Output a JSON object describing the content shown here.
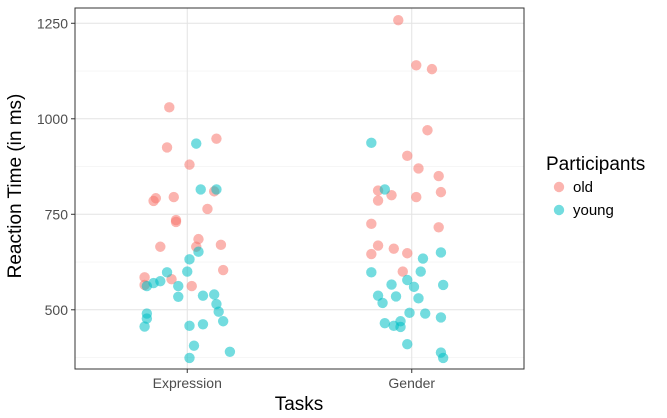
{
  "chart_data": {
    "type": "scatter",
    "title": "",
    "xlabel": "Tasks",
    "ylabel": "Reaction Time (in ms)",
    "categories": [
      "Expression",
      "Gender"
    ],
    "ylim": [
      345,
      1290
    ],
    "yticks": [
      500,
      750,
      1000,
      1250
    ],
    "grid": true,
    "legend": {
      "title": "Participants",
      "position": "right"
    },
    "series": [
      {
        "name": "old",
        "color": "#F8766D",
        "points": [
          {
            "category": "Expression",
            "jitter": -0.08,
            "y": 1030
          },
          {
            "category": "Expression",
            "jitter": 0.13,
            "y": 948
          },
          {
            "category": "Expression",
            "jitter": -0.09,
            "y": 925
          },
          {
            "category": "Expression",
            "jitter": 0.01,
            "y": 880
          },
          {
            "category": "Expression",
            "jitter": 0.12,
            "y": 810
          },
          {
            "category": "Expression",
            "jitter": -0.14,
            "y": 792
          },
          {
            "category": "Expression",
            "jitter": -0.06,
            "y": 795
          },
          {
            "category": "Expression",
            "jitter": -0.15,
            "y": 785
          },
          {
            "category": "Expression",
            "jitter": 0.09,
            "y": 764
          },
          {
            "category": "Expression",
            "jitter": -0.05,
            "y": 735
          },
          {
            "category": "Expression",
            "jitter": -0.05,
            "y": 730
          },
          {
            "category": "Expression",
            "jitter": 0.05,
            "y": 685
          },
          {
            "category": "Expression",
            "jitter": -0.12,
            "y": 665
          },
          {
            "category": "Expression",
            "jitter": 0.04,
            "y": 665
          },
          {
            "category": "Expression",
            "jitter": 0.15,
            "y": 670
          },
          {
            "category": "Expression",
            "jitter": 0.16,
            "y": 604
          },
          {
            "category": "Expression",
            "jitter": -0.19,
            "y": 585
          },
          {
            "category": "Expression",
            "jitter": -0.07,
            "y": 580
          },
          {
            "category": "Expression",
            "jitter": -0.19,
            "y": 565
          },
          {
            "category": "Expression",
            "jitter": 0.02,
            "y": 562
          },
          {
            "category": "Gender",
            "jitter": -0.06,
            "y": 1258
          },
          {
            "category": "Gender",
            "jitter": 0.02,
            "y": 1140
          },
          {
            "category": "Gender",
            "jitter": 0.09,
            "y": 1130
          },
          {
            "category": "Gender",
            "jitter": 0.07,
            "y": 970
          },
          {
            "category": "Gender",
            "jitter": -0.02,
            "y": 903
          },
          {
            "category": "Gender",
            "jitter": 0.03,
            "y": 870
          },
          {
            "category": "Gender",
            "jitter": 0.12,
            "y": 850
          },
          {
            "category": "Gender",
            "jitter": -0.15,
            "y": 812
          },
          {
            "category": "Gender",
            "jitter": 0.13,
            "y": 808
          },
          {
            "category": "Gender",
            "jitter": -0.09,
            "y": 800
          },
          {
            "category": "Gender",
            "jitter": 0.02,
            "y": 795
          },
          {
            "category": "Gender",
            "jitter": -0.15,
            "y": 786
          },
          {
            "category": "Gender",
            "jitter": -0.18,
            "y": 725
          },
          {
            "category": "Gender",
            "jitter": 0.12,
            "y": 716
          },
          {
            "category": "Gender",
            "jitter": -0.15,
            "y": 668
          },
          {
            "category": "Gender",
            "jitter": -0.08,
            "y": 660
          },
          {
            "category": "Gender",
            "jitter": -0.02,
            "y": 648
          },
          {
            "category": "Gender",
            "jitter": -0.18,
            "y": 646
          },
          {
            "category": "Gender",
            "jitter": -0.04,
            "y": 600
          }
        ]
      },
      {
        "name": "young",
        "color": "#00BFC4",
        "points": [
          {
            "category": "Expression",
            "jitter": 0.04,
            "y": 935
          },
          {
            "category": "Expression",
            "jitter": 0.06,
            "y": 815
          },
          {
            "category": "Expression",
            "jitter": 0.13,
            "y": 815
          },
          {
            "category": "Expression",
            "jitter": 0.05,
            "y": 652
          },
          {
            "category": "Expression",
            "jitter": 0.01,
            "y": 632
          },
          {
            "category": "Expression",
            "jitter": -0.09,
            "y": 598
          },
          {
            "category": "Expression",
            "jitter": 0.0,
            "y": 600
          },
          {
            "category": "Expression",
            "jitter": -0.12,
            "y": 575
          },
          {
            "category": "Expression",
            "jitter": -0.15,
            "y": 570
          },
          {
            "category": "Expression",
            "jitter": -0.18,
            "y": 562
          },
          {
            "category": "Expression",
            "jitter": -0.04,
            "y": 562
          },
          {
            "category": "Expression",
            "jitter": 0.12,
            "y": 540
          },
          {
            "category": "Expression",
            "jitter": 0.07,
            "y": 537
          },
          {
            "category": "Expression",
            "jitter": -0.04,
            "y": 534
          },
          {
            "category": "Expression",
            "jitter": 0.13,
            "y": 515
          },
          {
            "category": "Expression",
            "jitter": 0.14,
            "y": 495
          },
          {
            "category": "Expression",
            "jitter": -0.18,
            "y": 490
          },
          {
            "category": "Expression",
            "jitter": -0.18,
            "y": 477
          },
          {
            "category": "Expression",
            "jitter": 0.16,
            "y": 470
          },
          {
            "category": "Expression",
            "jitter": 0.07,
            "y": 462
          },
          {
            "category": "Expression",
            "jitter": 0.01,
            "y": 458
          },
          {
            "category": "Expression",
            "jitter": -0.19,
            "y": 456
          },
          {
            "category": "Expression",
            "jitter": 0.03,
            "y": 406
          },
          {
            "category": "Expression",
            "jitter": 0.19,
            "y": 390
          },
          {
            "category": "Expression",
            "jitter": 0.01,
            "y": 374
          },
          {
            "category": "Gender",
            "jitter": -0.18,
            "y": 937
          },
          {
            "category": "Gender",
            "jitter": -0.12,
            "y": 815
          },
          {
            "category": "Gender",
            "jitter": 0.13,
            "y": 650
          },
          {
            "category": "Gender",
            "jitter": 0.05,
            "y": 634
          },
          {
            "category": "Gender",
            "jitter": 0.04,
            "y": 600
          },
          {
            "category": "Gender",
            "jitter": -0.18,
            "y": 598
          },
          {
            "category": "Gender",
            "jitter": -0.02,
            "y": 578
          },
          {
            "category": "Gender",
            "jitter": -0.09,
            "y": 566
          },
          {
            "category": "Gender",
            "jitter": 0.14,
            "y": 565
          },
          {
            "category": "Gender",
            "jitter": 0.01,
            "y": 560
          },
          {
            "category": "Gender",
            "jitter": -0.15,
            "y": 537
          },
          {
            "category": "Gender",
            "jitter": -0.07,
            "y": 535
          },
          {
            "category": "Gender",
            "jitter": 0.03,
            "y": 530
          },
          {
            "category": "Gender",
            "jitter": -0.13,
            "y": 518
          },
          {
            "category": "Gender",
            "jitter": -0.01,
            "y": 492
          },
          {
            "category": "Gender",
            "jitter": 0.06,
            "y": 490
          },
          {
            "category": "Gender",
            "jitter": 0.13,
            "y": 480
          },
          {
            "category": "Gender",
            "jitter": -0.05,
            "y": 470
          },
          {
            "category": "Gender",
            "jitter": -0.12,
            "y": 465
          },
          {
            "category": "Gender",
            "jitter": -0.08,
            "y": 458
          },
          {
            "category": "Gender",
            "jitter": -0.05,
            "y": 455
          },
          {
            "category": "Gender",
            "jitter": -0.02,
            "y": 410
          },
          {
            "category": "Gender",
            "jitter": 0.13,
            "y": 388
          },
          {
            "category": "Gender",
            "jitter": 0.14,
            "y": 374
          }
        ]
      }
    ]
  }
}
